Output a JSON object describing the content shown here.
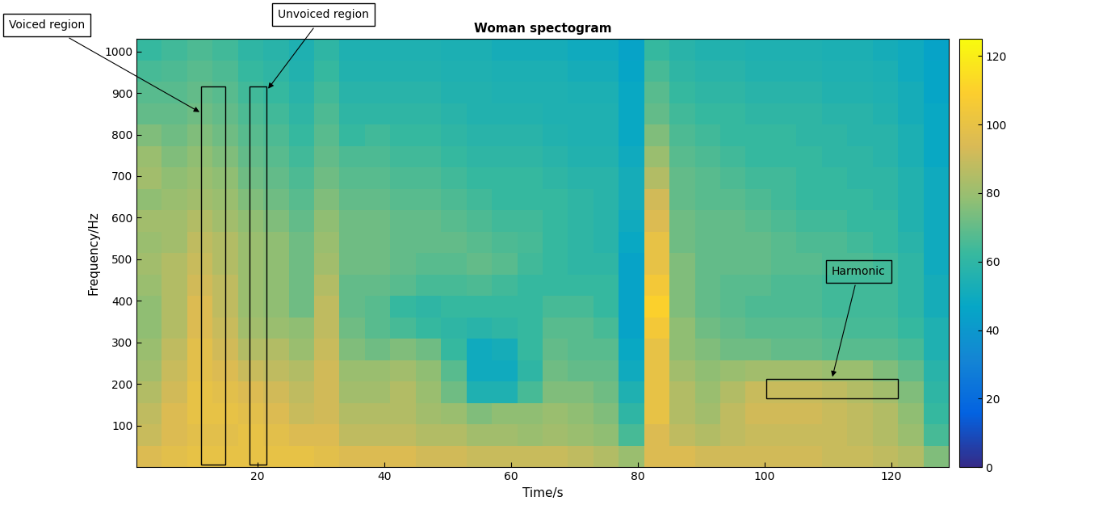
{
  "chart_data": {
    "type": "heatmap",
    "title": "Woman spectogram",
    "x_label": "Time/s",
    "y_label": "Frequency/Hz",
    "xlim": [
      1,
      129
    ],
    "ylim": [
      0,
      1030
    ],
    "xticks": [
      20,
      40,
      60,
      80,
      100,
      120
    ],
    "yticks": [
      100,
      200,
      300,
      400,
      500,
      600,
      700,
      800,
      900,
      1000
    ],
    "colorbar_range": [
      0,
      125
    ],
    "colorbar_ticks": [
      0,
      20,
      40,
      60,
      80,
      100,
      120
    ],
    "annotations": [
      {
        "text": "Voiced region",
        "x": [
          11.2,
          14.9
        ],
        "y": [
          6,
          915
        ]
      },
      {
        "text": "Unvoiced region",
        "x": [
          18.8,
          21.5
        ],
        "y": [
          6,
          915
        ]
      },
      {
        "text": "Harmonic",
        "x": [
          100.2,
          121.0
        ],
        "y": [
          165,
          212
        ]
      }
    ],
    "cells": [
      [
        95,
        98,
        100,
        100,
        100,
        100,
        100,
        98,
        95,
        95,
        95,
        92,
        92,
        90,
        90,
        90,
        90,
        88,
        85,
        80,
        95,
        95,
        92,
        92,
        92,
        92,
        92,
        90,
        90,
        88,
        85,
        75
      ],
      [
        90,
        95,
        98,
        98,
        100,
        98,
        95,
        95,
        88,
        88,
        88,
        85,
        85,
        82,
        82,
        80,
        82,
        80,
        78,
        65,
        95,
        88,
        85,
        88,
        90,
        90,
        90,
        90,
        88,
        85,
        80,
        65
      ],
      [
        88,
        95,
        100,
        100,
        98,
        95,
        90,
        92,
        85,
        85,
        85,
        82,
        80,
        75,
        78,
        78,
        80,
        78,
        75,
        60,
        100,
        85,
        82,
        88,
        92,
        92,
        92,
        90,
        88,
        85,
        78,
        62
      ],
      [
        85,
        92,
        100,
        98,
        95,
        92,
        88,
        92,
        82,
        82,
        85,
        80,
        72,
        55,
        55,
        65,
        75,
        75,
        72,
        55,
        100,
        85,
        80,
        85,
        90,
        90,
        90,
        88,
        85,
        82,
        75,
        60
      ],
      [
        82,
        90,
        98,
        95,
        90,
        88,
        85,
        92,
        80,
        80,
        82,
        78,
        68,
        50,
        50,
        60,
        72,
        70,
        70,
        50,
        100,
        82,
        78,
        80,
        82,
        82,
        82,
        80,
        80,
        75,
        70,
        58
      ],
      [
        80,
        88,
        98,
        92,
        85,
        85,
        80,
        90,
        75,
        72,
        75,
        72,
        62,
        50,
        52,
        62,
        70,
        68,
        68,
        48,
        100,
        78,
        75,
        72,
        72,
        70,
        70,
        68,
        68,
        68,
        65,
        55
      ],
      [
        78,
        85,
        95,
        90,
        82,
        80,
        78,
        88,
        72,
        68,
        65,
        62,
        60,
        58,
        60,
        62,
        68,
        68,
        65,
        45,
        105,
        78,
        72,
        70,
        68,
        68,
        68,
        66,
        65,
        65,
        62,
        55
      ],
      [
        78,
        85,
        95,
        88,
        80,
        78,
        72,
        88,
        70,
        68,
        62,
        60,
        62,
        62,
        62,
        62,
        65,
        65,
        62,
        45,
        110,
        75,
        70,
        68,
        66,
        66,
        66,
        64,
        64,
        64,
        60,
        52
      ],
      [
        80,
        85,
        92,
        88,
        80,
        78,
        72,
        85,
        70,
        70,
        68,
        65,
        65,
        66,
        64,
        62,
        62,
        62,
        62,
        45,
        105,
        75,
        70,
        68,
        68,
        66,
        66,
        64,
        64,
        64,
        60,
        52
      ],
      [
        82,
        85,
        90,
        85,
        80,
        78,
        72,
        82,
        72,
        72,
        70,
        68,
        68,
        70,
        68,
        64,
        62,
        60,
        60,
        45,
        100,
        75,
        70,
        70,
        70,
        68,
        68,
        66,
        66,
        64,
        60,
        50
      ],
      [
        80,
        82,
        88,
        85,
        80,
        78,
        72,
        80,
        72,
        72,
        70,
        70,
        70,
        68,
        66,
        65,
        62,
        60,
        58,
        48,
        100,
        72,
        70,
        70,
        70,
        68,
        66,
        66,
        64,
        62,
        58,
        50
      ],
      [
        82,
        82,
        85,
        82,
        78,
        75,
        70,
        78,
        72,
        72,
        70,
        70,
        68,
        66,
        64,
        64,
        62,
        60,
        58,
        50,
        95,
        72,
        70,
        70,
        68,
        66,
        64,
        64,
        62,
        62,
        56,
        50
      ],
      [
        78,
        80,
        82,
        80,
        75,
        72,
        68,
        75,
        70,
        70,
        68,
        68,
        66,
        64,
        62,
        62,
        62,
        60,
        58,
        52,
        92,
        70,
        68,
        68,
        66,
        64,
        62,
        62,
        62,
        60,
        56,
        50
      ],
      [
        82,
        78,
        80,
        78,
        72,
        70,
        66,
        72,
        68,
        68,
        66,
        66,
        64,
        62,
        62,
        62,
        60,
        58,
        58,
        52,
        85,
        70,
        68,
        66,
        64,
        64,
        62,
        62,
        60,
        60,
        56,
        50
      ],
      [
        80,
        75,
        78,
        75,
        70,
        68,
        64,
        70,
        66,
        66,
        64,
        64,
        62,
        60,
        60,
        60,
        58,
        56,
        56,
        50,
        80,
        68,
        66,
        64,
        62,
        62,
        62,
        60,
        60,
        58,
        54,
        48
      ],
      [
        75,
        72,
        75,
        72,
        68,
        66,
        62,
        68,
        62,
        64,
        62,
        62,
        60,
        58,
        58,
        58,
        56,
        55,
        55,
        48,
        75,
        66,
        64,
        62,
        62,
        62,
        60,
        60,
        58,
        58,
        54,
        48
      ],
      [
        70,
        70,
        72,
        70,
        66,
        64,
        60,
        66,
        60,
        60,
        60,
        60,
        58,
        56,
        56,
        56,
        55,
        55,
        55,
        48,
        70,
        64,
        62,
        62,
        60,
        60,
        60,
        58,
        58,
        56,
        52,
        48
      ],
      [
        68,
        68,
        70,
        68,
        64,
        62,
        58,
        64,
        58,
        58,
        58,
        58,
        56,
        56,
        55,
        55,
        55,
        54,
        54,
        48,
        68,
        62,
        60,
        60,
        58,
        58,
        58,
        56,
        56,
        55,
        52,
        46
      ],
      [
        65,
        66,
        68,
        66,
        62,
        60,
        56,
        62,
        56,
        56,
        56,
        56,
        55,
        55,
        54,
        54,
        54,
        52,
        52,
        46,
        65,
        60,
        58,
        58,
        56,
        56,
        56,
        55,
        55,
        54,
        50,
        46
      ],
      [
        62,
        64,
        66,
        64,
        60,
        58,
        55,
        60,
        55,
        55,
        55,
        55,
        54,
        54,
        52,
        52,
        52,
        50,
        50,
        45,
        62,
        58,
        56,
        56,
        55,
        55,
        55,
        54,
        54,
        52,
        50,
        45
      ]
    ]
  }
}
